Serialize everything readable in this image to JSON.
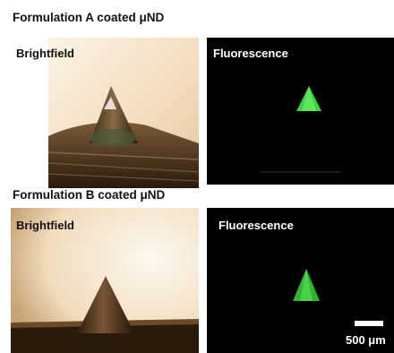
{
  "sections": [
    {
      "heading": "Formulation A coated μND",
      "brightfield_label": "Brightfield",
      "fluorescence_label": "Fluorescence"
    },
    {
      "heading": "Formulation B coated μND",
      "brightfield_label": "Brightfield",
      "fluorescence_label": "Fluorescence"
    }
  ],
  "scale_bar": {
    "label": "500 μm"
  },
  "colors": {
    "fluorescence_background": "#000000",
    "fluorescence_signal": "#3ad13a",
    "brightfield_background": "#f7ecdc",
    "brightfield_sample": "#5a3a1c"
  }
}
